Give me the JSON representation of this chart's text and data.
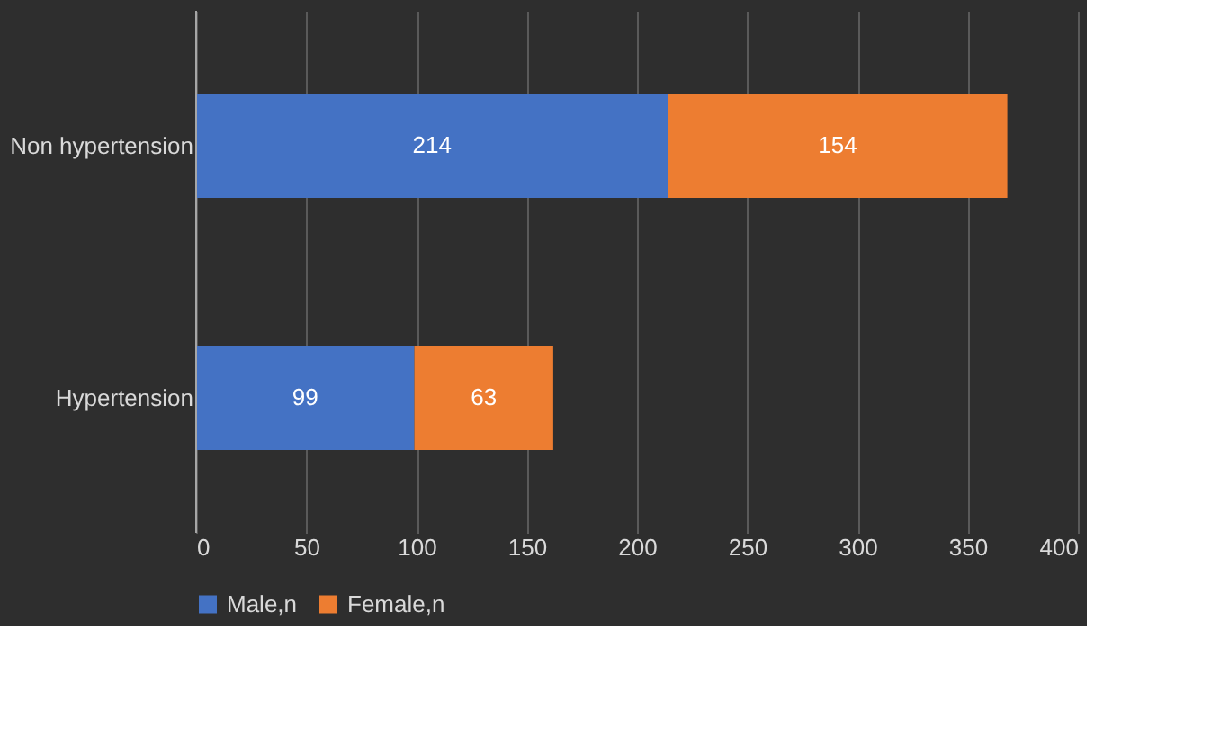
{
  "chart_data": {
    "type": "bar",
    "orientation": "horizontal",
    "stacked": true,
    "categories": [
      "Non hypertension",
      "Hypertension"
    ],
    "series": [
      {
        "name": "Male,n",
        "color": "#4472c4",
        "values": [
          214,
          99
        ]
      },
      {
        "name": "Female,n",
        "color": "#ed7d31",
        "values": [
          154,
          63
        ]
      }
    ],
    "xlim": [
      0,
      400
    ],
    "xticks": [
      0,
      50,
      100,
      150,
      200,
      250,
      300,
      350,
      400
    ],
    "grid": "x",
    "legend": "bottom",
    "data_labels": true
  }
}
